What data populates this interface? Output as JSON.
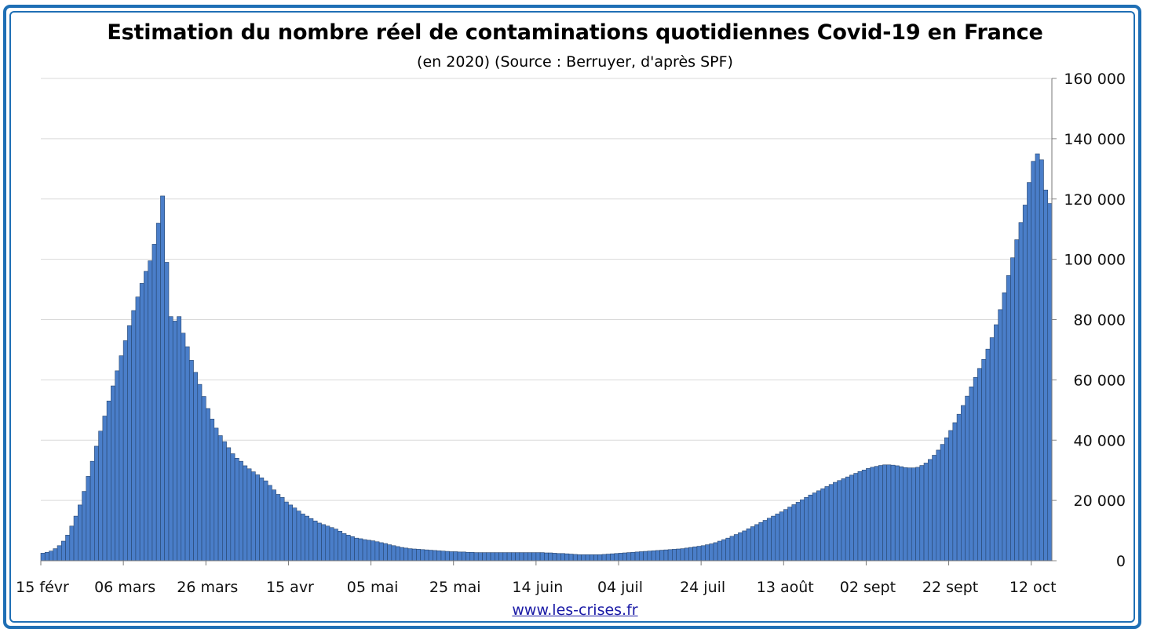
{
  "chart_data": {
    "type": "bar",
    "title": "Estimation du nombre réel de contaminations quotidiennes Covid-19 en France",
    "subtitle": "(en 2020) (Source : Berruyer, d'après SPF)",
    "xlabel": "",
    "ylabel": "",
    "ylim": [
      0,
      160000
    ],
    "y_ticks": [
      "0",
      "20 000",
      "40 000",
      "60 000",
      "80 000",
      "100 000",
      "120 000",
      "140 000",
      "160 000"
    ],
    "y_axis_side": "right",
    "grid": true,
    "bar_color": "#4a7ec9",
    "bar_edge_color": "#27456e",
    "x_ticks": [
      {
        "label": "15 févr",
        "day_index": 0
      },
      {
        "label": "06 mars",
        "day_index": 20
      },
      {
        "label": "26 mars",
        "day_index": 40
      },
      {
        "label": "15 avr",
        "day_index": 60
      },
      {
        "label": "05 mai",
        "day_index": 80
      },
      {
        "label": "25 mai",
        "day_index": 100
      },
      {
        "label": "14 juin",
        "day_index": 120
      },
      {
        "label": "04 juil",
        "day_index": 140
      },
      {
        "label": "24 juil",
        "day_index": 160
      },
      {
        "label": "13 août",
        "day_index": 180
      },
      {
        "label": "02 sept",
        "day_index": 200
      },
      {
        "label": "22 sept",
        "day_index": 220
      },
      {
        "label": "12 oct",
        "day_index": 240
      }
    ],
    "series": [
      {
        "values": [
          2500,
          2800,
          3200,
          4000,
          5000,
          6500,
          8500,
          11500,
          14800,
          18500,
          23000,
          28000,
          33000,
          38000,
          43000,
          48000,
          53000,
          58000,
          63000,
          68000,
          73000,
          78000,
          83000,
          87500,
          92000,
          96000,
          99500,
          105000,
          112000,
          121000,
          99000,
          81000,
          79500,
          81000,
          75500,
          71000,
          66500,
          62500,
          58500,
          54500,
          50500,
          47000,
          44000,
          41500,
          39500,
          37500,
          35500,
          34000,
          33000,
          31500,
          30500,
          29500,
          28500,
          27500,
          26500,
          25000,
          23500,
          22000,
          21000,
          19500,
          18500,
          17500,
          16500,
          15500,
          14800,
          14000,
          13200,
          12500,
          12000,
          11500,
          11000,
          10500,
          9800,
          9000,
          8500,
          8000,
          7500,
          7300,
          7000,
          6800,
          6600,
          6300,
          6000,
          5700,
          5300,
          5000,
          4700,
          4400,
          4200,
          4000,
          3900,
          3800,
          3700,
          3600,
          3500,
          3400,
          3300,
          3200,
          3100,
          3000,
          3000,
          2900,
          2900,
          2800,
          2800,
          2700,
          2700,
          2700,
          2700,
          2700,
          2700,
          2700,
          2700,
          2700,
          2700,
          2700,
          2700,
          2700,
          2700,
          2700,
          2700,
          2700,
          2600,
          2600,
          2500,
          2400,
          2400,
          2300,
          2200,
          2100,
          2000,
          2000,
          2000,
          2000,
          2000,
          2000,
          2100,
          2200,
          2300,
          2400,
          2500,
          2600,
          2700,
          2800,
          2900,
          3000,
          3100,
          3200,
          3300,
          3400,
          3500,
          3600,
          3700,
          3800,
          3900,
          4000,
          4200,
          4400,
          4600,
          4800,
          5000,
          5300,
          5600,
          6000,
          6500,
          7000,
          7500,
          8100,
          8700,
          9300,
          9900,
          10600,
          11300,
          12000,
          12700,
          13400,
          14100,
          14800,
          15500,
          16200,
          17000,
          17800,
          18600,
          19400,
          20200,
          21000,
          21800,
          22500,
          23200,
          23900,
          24600,
          25300,
          26000,
          26600,
          27200,
          27800,
          28400,
          29000,
          29600,
          30100,
          30600,
          31000,
          31300,
          31600,
          31800,
          31800,
          31700,
          31500,
          31200,
          30900,
          30800,
          30800,
          31000,
          31600,
          32400,
          33600,
          35000,
          36700,
          38600,
          40800,
          43200,
          45800,
          48600,
          51500,
          54600,
          57700,
          60800,
          63800,
          66800,
          70200,
          74000,
          78300,
          83300,
          88900,
          94600,
          100500,
          106500,
          112200,
          118000,
          125500,
          132500,
          135000,
          133000,
          123000,
          118500
        ]
      }
    ],
    "watermark_text": "www.les-crises.fr"
  }
}
